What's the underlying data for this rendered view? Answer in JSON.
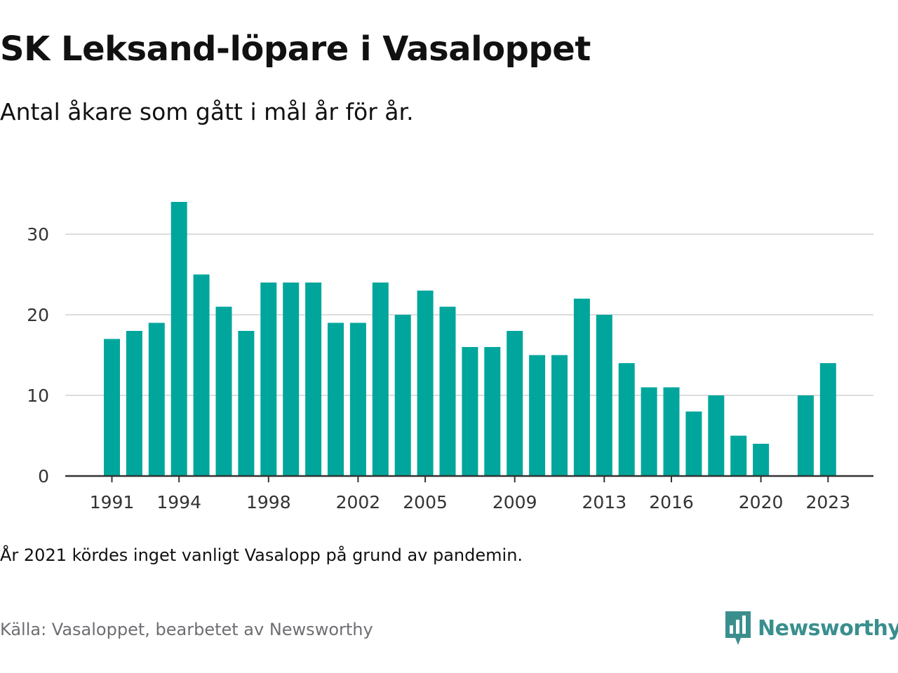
{
  "title": "SK Leksand-löpare i Vasaloppet",
  "subtitle": "Antal åkare som gått i mål år för år.",
  "note": "År 2021 kördes inget vanligt Vasalopp på grund av pandemin.",
  "source": "Källa: Vasaloppet, bearbetet av Newsworthy",
  "brand": {
    "name": "Newsworthy",
    "logo_icon": "newsworthy-bar-chart-icon",
    "color": "#3a8f8e"
  },
  "colors": {
    "bar": "#00a69c",
    "grid": "#dddddd",
    "axis": "#333333"
  },
  "chart_data": {
    "type": "bar",
    "title": "SK Leksand-löpare i Vasaloppet",
    "xlabel": "",
    "ylabel": "",
    "x": [
      1991,
      1992,
      1993,
      1994,
      1995,
      1996,
      1997,
      1998,
      1999,
      2000,
      2001,
      2002,
      2003,
      2004,
      2005,
      2006,
      2007,
      2008,
      2009,
      2010,
      2011,
      2012,
      2013,
      2014,
      2015,
      2016,
      2017,
      2018,
      2019,
      2020,
      2021,
      2022,
      2023
    ],
    "values": [
      17,
      18,
      19,
      34,
      25,
      21,
      18,
      24,
      24,
      24,
      19,
      19,
      24,
      20,
      23,
      21,
      16,
      16,
      18,
      15,
      15,
      22,
      20,
      14,
      11,
      11,
      8,
      10,
      5,
      4,
      null,
      10,
      14
    ],
    "x_tick_labels": [
      "1991",
      "1994",
      "1998",
      "2002",
      "2005",
      "2009",
      "2013",
      "2016",
      "2020",
      "2023"
    ],
    "y_ticks": [
      0,
      10,
      20,
      30
    ],
    "ylim": [
      0,
      34
    ],
    "grid": true
  }
}
